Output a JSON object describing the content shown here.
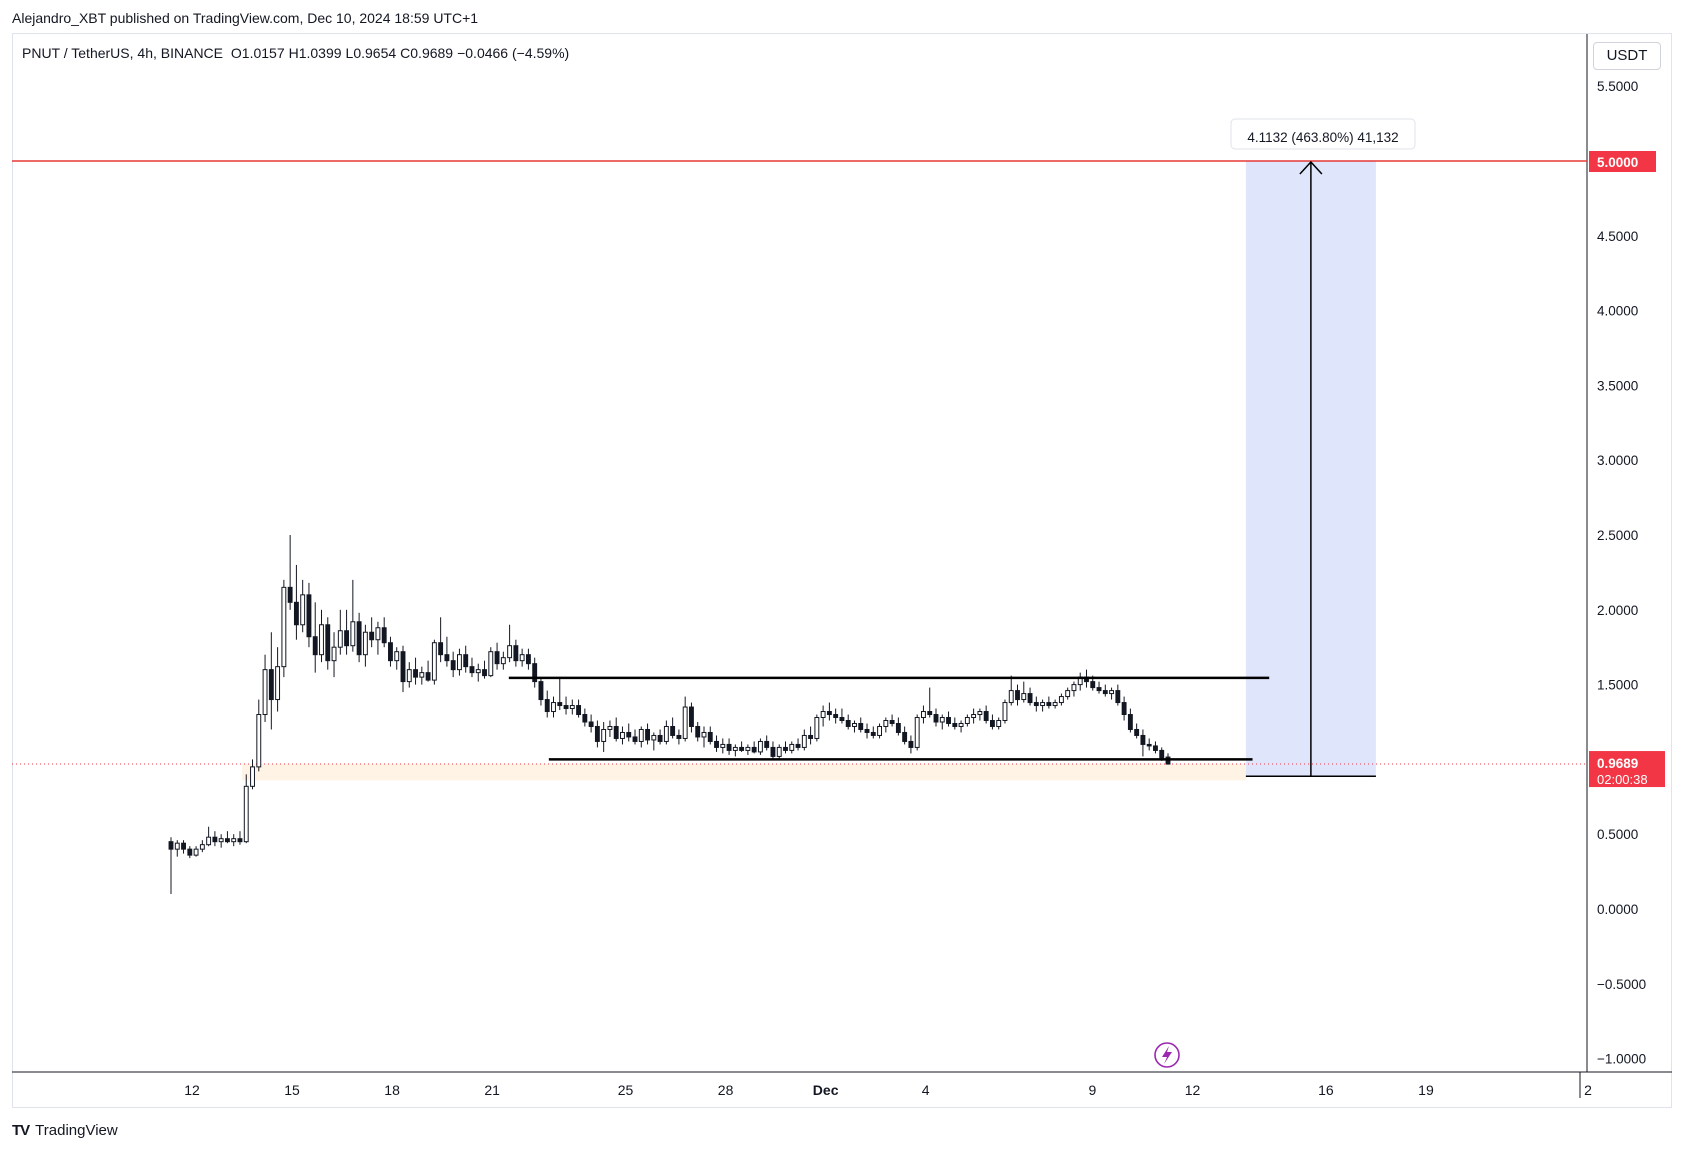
{
  "publisher_line": "Alejandro_XBT published on TradingView.com, Dec 10, 2024 18:59 UTC+1",
  "legend": {
    "symbol": "PNUT / TetherUS, 4h, BINANCE",
    "open": "O1.0157",
    "high": "H1.0399",
    "low": "L0.9654",
    "close": "C0.9689",
    "change": "−0.0466 (−4.59%)"
  },
  "currency": "USDT",
  "footer": {
    "brand": "TradingView",
    "mark": "TV"
  },
  "colors": {
    "resistance_line": "#e53935",
    "last_price_badge": "#f23645",
    "projection_fill": "#dfe6fb",
    "support_zone": "#fff3e6",
    "candle": "#131722"
  },
  "price_badges": {
    "target": "5.0000",
    "last": "0.9689",
    "countdown": "02:00:38"
  },
  "measure_label": "4.1132 (463.80%) 41,132",
  "chart_data": {
    "type": "candlestick",
    "symbol": "PNUT/USDT",
    "timeframe": "4h",
    "y_axis": {
      "ticks": [
        "5.5000",
        "4.5000",
        "4.0000",
        "3.5000",
        "3.0000",
        "2.5000",
        "2.0000",
        "1.5000",
        "0.5000",
        "0.0000",
        "−0.5000",
        "−1.0000"
      ],
      "tick_values": [
        5.5,
        4.5,
        4.0,
        3.5,
        3.0,
        2.5,
        2.0,
        1.5,
        0.5,
        0.0,
        -0.5,
        -1.0
      ],
      "range": [
        -1.12,
        5.75
      ]
    },
    "x_axis": {
      "ticks": [
        "12",
        "15",
        "18",
        "21",
        "25",
        "28",
        "Dec",
        "4",
        "9",
        "12",
        "16",
        "19",
        "2"
      ],
      "tick_days": [
        0,
        3,
        6,
        9,
        13,
        16,
        19,
        22,
        27,
        30,
        34,
        37,
        40
      ],
      "day_zero": "Nov 12"
    },
    "horizontal_levels": [
      {
        "name": "target",
        "price": 5.0
      },
      {
        "name": "range_high",
        "price": 1.545,
        "from_day": 9.5,
        "to_day": 32.3
      },
      {
        "name": "range_low",
        "price": 1.0,
        "from_day": 10.7,
        "to_day": 31.8
      },
      {
        "name": "last_price",
        "price": 0.9689
      }
    ],
    "projection": {
      "from_price": 0.887,
      "to_price": 5.0,
      "from_day": 31.6,
      "to_day": 35.5,
      "change": 4.1132,
      "change_pct": 463.8,
      "ticks": 41132
    },
    "support_zone": {
      "top": 0.97,
      "bottom": 0.86,
      "from_day": 1.5,
      "to_day": 31.6
    },
    "candles_ohlc": [
      [
        0.45,
        0.48,
        0.1,
        0.4
      ],
      [
        0.4,
        0.46,
        0.35,
        0.44
      ],
      [
        0.44,
        0.46,
        0.37,
        0.4
      ],
      [
        0.4,
        0.42,
        0.34,
        0.36
      ],
      [
        0.36,
        0.42,
        0.35,
        0.4
      ],
      [
        0.4,
        0.46,
        0.38,
        0.43
      ],
      [
        0.43,
        0.55,
        0.42,
        0.48
      ],
      [
        0.48,
        0.52,
        0.42,
        0.45
      ],
      [
        0.45,
        0.5,
        0.41,
        0.47
      ],
      [
        0.47,
        0.52,
        0.44,
        0.45
      ],
      [
        0.45,
        0.5,
        0.42,
        0.47
      ],
      [
        0.47,
        0.52,
        0.43,
        0.45
      ],
      [
        0.45,
        0.9,
        0.44,
        0.82
      ],
      [
        0.82,
        1.0,
        0.8,
        0.95
      ],
      [
        0.95,
        1.4,
        0.92,
        1.3
      ],
      [
        1.3,
        1.7,
        1.25,
        1.6
      ],
      [
        1.6,
        1.85,
        1.2,
        1.4
      ],
      [
        1.4,
        1.75,
        1.32,
        1.62
      ],
      [
        1.62,
        2.2,
        1.55,
        2.15
      ],
      [
        2.15,
        2.5,
        2.0,
        2.05
      ],
      [
        2.05,
        2.3,
        1.8,
        1.9
      ],
      [
        1.9,
        2.2,
        1.85,
        2.1
      ],
      [
        2.1,
        2.18,
        1.75,
        1.82
      ],
      [
        1.82,
        2.05,
        1.58,
        1.7
      ],
      [
        1.7,
        2.0,
        1.65,
        1.9
      ],
      [
        1.9,
        1.95,
        1.6,
        1.66
      ],
      [
        1.66,
        1.85,
        1.55,
        1.75
      ],
      [
        1.75,
        2.0,
        1.7,
        1.86
      ],
      [
        1.86,
        2.0,
        1.7,
        1.76
      ],
      [
        1.76,
        2.2,
        1.72,
        1.92
      ],
      [
        1.92,
        1.98,
        1.65,
        1.7
      ],
      [
        1.7,
        1.9,
        1.62,
        1.85
      ],
      [
        1.85,
        1.95,
        1.75,
        1.8
      ],
      [
        1.8,
        1.92,
        1.7,
        1.88
      ],
      [
        1.88,
        1.95,
        1.75,
        1.78
      ],
      [
        1.78,
        1.82,
        1.62,
        1.66
      ],
      [
        1.66,
        1.75,
        1.6,
        1.72
      ],
      [
        1.72,
        1.76,
        1.45,
        1.52
      ],
      [
        1.52,
        1.65,
        1.48,
        1.6
      ],
      [
        1.6,
        1.68,
        1.5,
        1.55
      ],
      [
        1.55,
        1.62,
        1.5,
        1.58
      ],
      [
        1.58,
        1.66,
        1.52,
        1.53
      ],
      [
        1.53,
        1.8,
        1.5,
        1.78
      ],
      [
        1.78,
        1.95,
        1.65,
        1.7
      ],
      [
        1.7,
        1.82,
        1.62,
        1.66
      ],
      [
        1.66,
        1.72,
        1.55,
        1.6
      ],
      [
        1.6,
        1.74,
        1.56,
        1.7
      ],
      [
        1.7,
        1.76,
        1.58,
        1.62
      ],
      [
        1.62,
        1.68,
        1.55,
        1.58
      ],
      [
        1.58,
        1.64,
        1.52,
        1.6
      ],
      [
        1.6,
        1.66,
        1.54,
        1.56
      ],
      [
        1.56,
        1.75,
        1.55,
        1.72
      ],
      [
        1.72,
        1.78,
        1.6,
        1.64
      ],
      [
        1.64,
        1.72,
        1.6,
        1.68
      ],
      [
        1.68,
        1.9,
        1.65,
        1.76
      ],
      [
        1.76,
        1.8,
        1.62,
        1.66
      ],
      [
        1.66,
        1.74,
        1.62,
        1.7
      ],
      [
        1.7,
        1.74,
        1.6,
        1.64
      ],
      [
        1.64,
        1.68,
        1.48,
        1.52
      ],
      [
        1.52,
        1.55,
        1.36,
        1.4
      ],
      [
        1.4,
        1.46,
        1.28,
        1.32
      ],
      [
        1.32,
        1.42,
        1.28,
        1.38
      ],
      [
        1.38,
        1.54,
        1.33,
        1.36
      ],
      [
        1.36,
        1.42,
        1.3,
        1.34
      ],
      [
        1.34,
        1.4,
        1.3,
        1.36
      ],
      [
        1.36,
        1.4,
        1.28,
        1.3
      ],
      [
        1.3,
        1.34,
        1.22,
        1.25
      ],
      [
        1.25,
        1.3,
        1.18,
        1.22
      ],
      [
        1.22,
        1.26,
        1.08,
        1.12
      ],
      [
        1.12,
        1.25,
        1.05,
        1.2
      ],
      [
        1.2,
        1.26,
        1.15,
        1.22
      ],
      [
        1.22,
        1.28,
        1.12,
        1.14
      ],
      [
        1.14,
        1.22,
        1.1,
        1.18
      ],
      [
        1.18,
        1.24,
        1.12,
        1.15
      ],
      [
        1.15,
        1.2,
        1.1,
        1.12
      ],
      [
        1.12,
        1.22,
        1.08,
        1.2
      ],
      [
        1.2,
        1.24,
        1.1,
        1.13
      ],
      [
        1.13,
        1.18,
        1.06,
        1.16
      ],
      [
        1.16,
        1.2,
        1.1,
        1.12
      ],
      [
        1.12,
        1.26,
        1.1,
        1.22
      ],
      [
        1.22,
        1.28,
        1.14,
        1.16
      ],
      [
        1.16,
        1.2,
        1.1,
        1.14
      ],
      [
        1.14,
        1.42,
        1.12,
        1.35
      ],
      [
        1.35,
        1.38,
        1.18,
        1.22
      ],
      [
        1.22,
        1.25,
        1.12,
        1.15
      ],
      [
        1.15,
        1.22,
        1.08,
        1.18
      ],
      [
        1.18,
        1.22,
        1.1,
        1.12
      ],
      [
        1.12,
        1.16,
        1.05,
        1.08
      ],
      [
        1.08,
        1.14,
        1.04,
        1.1
      ],
      [
        1.1,
        1.14,
        1.03,
        1.06
      ],
      [
        1.06,
        1.1,
        1.02,
        1.08
      ],
      [
        1.08,
        1.12,
        1.05,
        1.06
      ],
      [
        1.06,
        1.1,
        1.03,
        1.08
      ],
      [
        1.08,
        1.12,
        1.04,
        1.05
      ],
      [
        1.05,
        1.14,
        1.03,
        1.12
      ],
      [
        1.12,
        1.16,
        1.06,
        1.08
      ],
      [
        1.08,
        1.12,
        1.0,
        1.02
      ],
      [
        1.02,
        1.1,
        1.0,
        1.08
      ],
      [
        1.08,
        1.12,
        1.04,
        1.06
      ],
      [
        1.06,
        1.12,
        1.04,
        1.1
      ],
      [
        1.1,
        1.14,
        1.06,
        1.08
      ],
      [
        1.08,
        1.2,
        1.06,
        1.16
      ],
      [
        1.16,
        1.22,
        1.1,
        1.14
      ],
      [
        1.14,
        1.3,
        1.12,
        1.28
      ],
      [
        1.28,
        1.36,
        1.22,
        1.32
      ],
      [
        1.32,
        1.38,
        1.26,
        1.3
      ],
      [
        1.3,
        1.34,
        1.24,
        1.28
      ],
      [
        1.28,
        1.34,
        1.24,
        1.26
      ],
      [
        1.26,
        1.3,
        1.2,
        1.22
      ],
      [
        1.22,
        1.26,
        1.18,
        1.24
      ],
      [
        1.24,
        1.28,
        1.18,
        1.2
      ],
      [
        1.2,
        1.24,
        1.14,
        1.18
      ],
      [
        1.18,
        1.22,
        1.14,
        1.16
      ],
      [
        1.16,
        1.24,
        1.14,
        1.22
      ],
      [
        1.22,
        1.28,
        1.18,
        1.26
      ],
      [
        1.26,
        1.3,
        1.22,
        1.24
      ],
      [
        1.24,
        1.28,
        1.16,
        1.18
      ],
      [
        1.18,
        1.22,
        1.1,
        1.12
      ],
      [
        1.12,
        1.16,
        1.04,
        1.08
      ],
      [
        1.08,
        1.3,
        1.06,
        1.28
      ],
      [
        1.28,
        1.36,
        1.24,
        1.32
      ],
      [
        1.32,
        1.48,
        1.28,
        1.3
      ],
      [
        1.3,
        1.34,
        1.22,
        1.25
      ],
      [
        1.25,
        1.3,
        1.2,
        1.28
      ],
      [
        1.28,
        1.32,
        1.22,
        1.24
      ],
      [
        1.24,
        1.28,
        1.2,
        1.22
      ],
      [
        1.22,
        1.26,
        1.18,
        1.24
      ],
      [
        1.24,
        1.3,
        1.22,
        1.28
      ],
      [
        1.28,
        1.34,
        1.24,
        1.3
      ],
      [
        1.3,
        1.34,
        1.26,
        1.32
      ],
      [
        1.32,
        1.36,
        1.24,
        1.26
      ],
      [
        1.26,
        1.3,
        1.2,
        1.22
      ],
      [
        1.22,
        1.28,
        1.2,
        1.26
      ],
      [
        1.26,
        1.4,
        1.24,
        1.38
      ],
      [
        1.38,
        1.56,
        1.36,
        1.46
      ],
      [
        1.46,
        1.5,
        1.36,
        1.4
      ],
      [
        1.4,
        1.52,
        1.38,
        1.44
      ],
      [
        1.44,
        1.48,
        1.36,
        1.38
      ],
      [
        1.38,
        1.42,
        1.32,
        1.36
      ],
      [
        1.36,
        1.4,
        1.32,
        1.38
      ],
      [
        1.38,
        1.42,
        1.34,
        1.36
      ],
      [
        1.36,
        1.4,
        1.34,
        1.38
      ],
      [
        1.38,
        1.44,
        1.36,
        1.42
      ],
      [
        1.42,
        1.48,
        1.4,
        1.46
      ],
      [
        1.46,
        1.52,
        1.42,
        1.5
      ],
      [
        1.5,
        1.58,
        1.46,
        1.55
      ],
      [
        1.55,
        1.6,
        1.48,
        1.52
      ],
      [
        1.52,
        1.56,
        1.46,
        1.48
      ],
      [
        1.48,
        1.52,
        1.44,
        1.46
      ],
      [
        1.46,
        1.5,
        1.42,
        1.44
      ],
      [
        1.44,
        1.48,
        1.4,
        1.46
      ],
      [
        1.46,
        1.5,
        1.36,
        1.38
      ],
      [
        1.38,
        1.42,
        1.26,
        1.3
      ],
      [
        1.3,
        1.34,
        1.18,
        1.2
      ],
      [
        1.2,
        1.24,
        1.14,
        1.16
      ],
      [
        1.16,
        1.2,
        1.02,
        1.1
      ],
      [
        1.1,
        1.14,
        1.06,
        1.09
      ],
      [
        1.09,
        1.12,
        1.04,
        1.06
      ],
      [
        1.06,
        1.08,
        0.99,
        1.01
      ],
      [
        1.0157,
        1.0399,
        0.9654,
        0.9689
      ]
    ]
  }
}
